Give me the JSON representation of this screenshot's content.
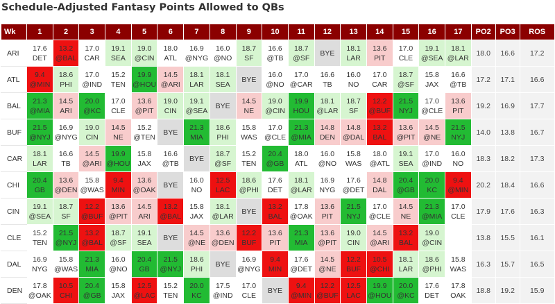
{
  "title": "Schedule-Adjusted Fantasy Points Allowed to QBs",
  "colors": {
    "header_bg": "#8b0000",
    "dark_green": "#22bb33",
    "light_green": "#d6f5d0",
    "neutral": "#ffffff",
    "light_red": "#f8cccc",
    "dark_red": "#ee1111",
    "bye": "#dddddd"
  },
  "headers": [
    "Wk",
    "1",
    "2",
    "3",
    "4",
    "5",
    "6",
    "7",
    "8",
    "9",
    "10",
    "11",
    "12",
    "13",
    "14",
    "15",
    "16",
    "17",
    "PO2",
    "PO3",
    "ROS"
  ],
  "rows": [
    {
      "team": "ARI",
      "cells": [
        [
          "17.6",
          "DET",
          "wh"
        ],
        [
          "13.2",
          "@BAL",
          "dr"
        ],
        [
          "17.0",
          "CAR",
          "wh"
        ],
        [
          "19.1",
          "SEA",
          "lg"
        ],
        [
          "19.0",
          "@CIN",
          "lg"
        ],
        [
          "18.0",
          "ATL",
          "wh"
        ],
        [
          "16.9",
          "@NYG",
          "wh"
        ],
        [
          "16.0",
          "@NO",
          "wh"
        ],
        [
          "18.7",
          "SF",
          "lg"
        ],
        [
          "16.6",
          "@TB",
          "wh"
        ],
        [
          "18.7",
          "@SF",
          "lg"
        ],
        [
          "BYE",
          "",
          "bye"
        ],
        [
          "18.1",
          "LAR",
          "lg"
        ],
        [
          "13.6",
          "PIT",
          "lr"
        ],
        [
          "17.0",
          "CLE",
          "wh"
        ],
        [
          "19.1",
          "@SEA",
          "lg"
        ],
        [
          "18.1",
          "@LAR",
          "lg"
        ]
      ],
      "po2": "18.0",
      "po3": "16.6",
      "ros": "17.2"
    },
    {
      "team": "ATL",
      "cells": [
        [
          "9.4",
          "@MIN",
          "dr"
        ],
        [
          "18.6",
          "PHI",
          "lg"
        ],
        [
          "17.0",
          "@IND",
          "wh"
        ],
        [
          "15.2",
          "TEN",
          "wh"
        ],
        [
          "19.9",
          "@HOU",
          "dg"
        ],
        [
          "14.5",
          "@ARI",
          "lr"
        ],
        [
          "18.1",
          "LAR",
          "lg"
        ],
        [
          "18.1",
          "SEA",
          "lg"
        ],
        [
          "BYE",
          "",
          "bye"
        ],
        [
          "16.0",
          "@NO",
          "wh"
        ],
        [
          "17.0",
          "@CAR",
          "wh"
        ],
        [
          "16.6",
          "TB",
          "wh"
        ],
        [
          "16.0",
          "NO",
          "wh"
        ],
        [
          "17.0",
          "CAR",
          "wh"
        ],
        [
          "18.7",
          "@SF",
          "lg"
        ],
        [
          "15.8",
          "JAX",
          "wh"
        ],
        [
          "16.6",
          "@TB",
          "wh"
        ]
      ],
      "po2": "17.2",
      "po3": "17.1",
      "ros": "16.6"
    },
    {
      "team": "BAL",
      "cells": [
        [
          "21.3",
          "@MIA",
          "dg"
        ],
        [
          "14.5",
          "ARI",
          "lr"
        ],
        [
          "20.0",
          "@KC",
          "dg"
        ],
        [
          "17.0",
          "CLE",
          "wh"
        ],
        [
          "13.6",
          "@PIT",
          "lr"
        ],
        [
          "19.0",
          "CIN",
          "lg"
        ],
        [
          "19.1",
          "@SEA",
          "lg"
        ],
        [
          "BYE",
          "",
          "bye"
        ],
        [
          "14.5",
          "NE",
          "lr"
        ],
        [
          "19.0",
          "@CIN",
          "lg"
        ],
        [
          "19.9",
          "HOU",
          "dg"
        ],
        [
          "18.1",
          "@LAR",
          "lg"
        ],
        [
          "18.7",
          "SF",
          "lg"
        ],
        [
          "12.2",
          "@BUF",
          "dr"
        ],
        [
          "21.5",
          "NYJ",
          "dg"
        ],
        [
          "17.0",
          "@CLE",
          "wh"
        ],
        [
          "13.6",
          "PIT",
          "lr"
        ]
      ],
      "po2": "19.2",
      "po3": "16.9",
      "ros": "17.7"
    },
    {
      "team": "BUF",
      "cells": [
        [
          "21.5",
          "@NYJ",
          "dg"
        ],
        [
          "16.9",
          "@NYG",
          "wh"
        ],
        [
          "19.0",
          "CIN",
          "lg"
        ],
        [
          "14.5",
          "NE",
          "lr"
        ],
        [
          "15.2",
          "@TEN",
          "wh"
        ],
        [
          "BYE",
          "",
          "bye"
        ],
        [
          "21.3",
          "MIA",
          "dg"
        ],
        [
          "18.6",
          "PHI",
          "lg"
        ],
        [
          "15.8",
          "WAS",
          "wh"
        ],
        [
          "17.0",
          "@CLE",
          "wh"
        ],
        [
          "21.3",
          "@MIA",
          "dg"
        ],
        [
          "14.8",
          "DEN",
          "lr"
        ],
        [
          "14.8",
          "@DAL",
          "lr"
        ],
        [
          "13.2",
          "BAL",
          "dr"
        ],
        [
          "13.6",
          "@PIT",
          "lr"
        ],
        [
          "14.5",
          "@NE",
          "lr"
        ],
        [
          "21.5",
          "NYJ",
          "dg"
        ]
      ],
      "po2": "14.0",
      "po3": "13.8",
      "ros": "16.7"
    },
    {
      "team": "CAR",
      "cells": [
        [
          "18.1",
          "LAR",
          "lg"
        ],
        [
          "16.6",
          "TB",
          "wh"
        ],
        [
          "14.5",
          "@ARI",
          "lr"
        ],
        [
          "19.9",
          "@HOU",
          "dg"
        ],
        [
          "15.8",
          "JAX",
          "wh"
        ],
        [
          "16.6",
          "@TB",
          "wh"
        ],
        [
          "BYE",
          "",
          "bye"
        ],
        [
          "18.7",
          "@SF",
          "lg"
        ],
        [
          "15.2",
          "TEN",
          "wh"
        ],
        [
          "20.4",
          "@GB",
          "dg"
        ],
        [
          "18.0",
          "ATL",
          "wh"
        ],
        [
          "16.0",
          "@NO",
          "wh"
        ],
        [
          "15.8",
          "WAS",
          "wh"
        ],
        [
          "18.0",
          "@ATL",
          "wh"
        ],
        [
          "19.1",
          "SEA",
          "lg"
        ],
        [
          "17.0",
          "@IND",
          "wh"
        ],
        [
          "16.0",
          "NO",
          "wh"
        ]
      ],
      "po2": "18.3",
      "po3": "18.2",
      "ros": "17.3"
    },
    {
      "team": "CHI",
      "cells": [
        [
          "20.4",
          "GB",
          "dg"
        ],
        [
          "13.6",
          "@DEN",
          "lr"
        ],
        [
          "15.8",
          "@WAS",
          "wh"
        ],
        [
          "9.4",
          "MIN",
          "dr"
        ],
        [
          "13.6",
          "@OAK",
          "lr"
        ],
        [
          "BYE",
          "",
          "bye"
        ],
        [
          "16.0",
          "NO",
          "wh"
        ],
        [
          "12.5",
          "LAC",
          "dr"
        ],
        [
          "18.6",
          "@PHI",
          "lg"
        ],
        [
          "17.6",
          "DET",
          "wh"
        ],
        [
          "18.1",
          "@LAR",
          "lg"
        ],
        [
          "16.9",
          "NYG",
          "wh"
        ],
        [
          "17.6",
          "@DET",
          "wh"
        ],
        [
          "14.8",
          "DAL",
          "lr"
        ],
        [
          "20.4",
          "@GB",
          "dg"
        ],
        [
          "20.0",
          "KC",
          "dg"
        ],
        [
          "9.4",
          "@MIN",
          "dr"
        ]
      ],
      "po2": "20.2",
      "po3": "18.4",
      "ros": "16.6"
    },
    {
      "team": "CIN",
      "cells": [
        [
          "19.1",
          "@SEA",
          "lg"
        ],
        [
          "18.7",
          "SF",
          "lg"
        ],
        [
          "12.2",
          "@BUF",
          "dr"
        ],
        [
          "13.6",
          "@PIT",
          "lr"
        ],
        [
          "14.5",
          "ARI",
          "lr"
        ],
        [
          "13.2",
          "@BAL",
          "dr"
        ],
        [
          "15.8",
          "JAX",
          "wh"
        ],
        [
          "18.1",
          "@LAR",
          "lg"
        ],
        [
          "BYE",
          "",
          "bye"
        ],
        [
          "13.2",
          "BAL",
          "dr"
        ],
        [
          "17.8",
          "@OAK",
          "wh"
        ],
        [
          "13.6",
          "PIT",
          "lr"
        ],
        [
          "21.5",
          "NYJ",
          "dg"
        ],
        [
          "17.0",
          "@CLE",
          "wh"
        ],
        [
          "14.5",
          "NE",
          "lr"
        ],
        [
          "21.3",
          "@MIA",
          "dg"
        ],
        [
          "17.0",
          "CLE",
          "wh"
        ]
      ],
      "po2": "17.9",
      "po3": "17.6",
      "ros": "16.3"
    },
    {
      "team": "CLE",
      "cells": [
        [
          "15.2",
          "TEN",
          "wh"
        ],
        [
          "21.5",
          "@NYJ",
          "dg"
        ],
        [
          "13.2",
          "@BAL",
          "dr"
        ],
        [
          "18.7",
          "@SF",
          "lg"
        ],
        [
          "19.1",
          "SEA",
          "lg"
        ],
        [
          "BYE",
          "",
          "bye"
        ],
        [
          "14.5",
          "@NE",
          "lr"
        ],
        [
          "13.6",
          "@DEN",
          "lr"
        ],
        [
          "12.2",
          "BUF",
          "dr"
        ],
        [
          "13.6",
          "PIT",
          "lr"
        ],
        [
          "21.3",
          "MIA",
          "dg"
        ],
        [
          "13.6",
          "@PIT",
          "lr"
        ],
        [
          "19.0",
          "CIN",
          "lg"
        ],
        [
          "14.5",
          "@ARI",
          "lr"
        ],
        [
          "13.2",
          "BAL",
          "dr"
        ],
        [
          "19.0",
          "@CIN",
          "lg"
        ],
        [
          "",
          "",
          "wh"
        ]
      ],
      "po2": "13.8",
      "po3": "15.5",
      "ros": "16.1"
    },
    {
      "team": "DAL",
      "cells": [
        [
          "16.9",
          "NYG",
          "wh"
        ],
        [
          "15.8",
          "@WAS",
          "wh"
        ],
        [
          "21.3",
          "MIA",
          "dg"
        ],
        [
          "16.0",
          "@NO",
          "wh"
        ],
        [
          "20.4",
          "GB",
          "dg"
        ],
        [
          "21.5",
          "@NYJ",
          "dg"
        ],
        [
          "18.6",
          "PHI",
          "lg"
        ],
        [
          "BYE",
          "",
          "bye"
        ],
        [
          "16.9",
          "@NYG",
          "wh"
        ],
        [
          "9.4",
          "MIN",
          "dr"
        ],
        [
          "17.6",
          "@DET",
          "wh"
        ],
        [
          "14.5",
          "@NE",
          "lr"
        ],
        [
          "12.2",
          "BUF",
          "dr"
        ],
        [
          "10.5",
          "@CHI",
          "dr"
        ],
        [
          "18.1",
          "LAR",
          "lg"
        ],
        [
          "18.6",
          "@PHI",
          "lg"
        ],
        [
          "15.8",
          "WAS",
          "wh"
        ]
      ],
      "po2": "16.3",
      "po3": "15.7",
      "ros": "16.5"
    },
    {
      "team": "DEN",
      "cells": [
        [
          "17.8",
          "@OAK",
          "wh"
        ],
        [
          "10.5",
          "CHI",
          "dr"
        ],
        [
          "20.4",
          "@GB",
          "dg"
        ],
        [
          "15.8",
          "JAX",
          "wh"
        ],
        [
          "12.5",
          "@LAC",
          "dr"
        ],
        [
          "15.2",
          "TEN",
          "wh"
        ],
        [
          "20.0",
          "KC",
          "dg"
        ],
        [
          "17.5",
          "@IND",
          "wh"
        ],
        [
          "17.0",
          "CLE",
          "wh"
        ],
        [
          "BYE",
          "",
          "bye"
        ],
        [
          "9.4",
          "@MIN",
          "dr"
        ],
        [
          "12.2",
          "@BUF",
          "dr"
        ],
        [
          "12.5",
          "LAC",
          "dr"
        ],
        [
          "19.9",
          "@HOU",
          "dg"
        ],
        [
          "20.0",
          "@KC",
          "dg"
        ],
        [
          "17.6",
          "DET",
          "wh"
        ],
        [
          "17.8",
          "OAK",
          "wh"
        ]
      ],
      "po2": "18.8",
      "po3": "19.2",
      "ros": "15.9"
    }
  ]
}
